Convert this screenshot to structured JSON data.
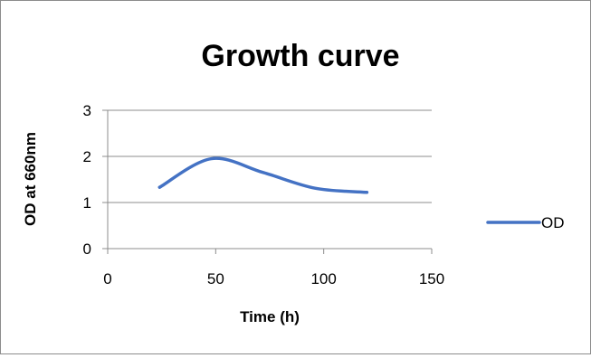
{
  "chart_data": {
    "type": "line",
    "title": "Growth curve",
    "xlabel": "Time (h)",
    "ylabel": "OD at 660nm",
    "xlim": [
      0,
      150
    ],
    "ylim": [
      0,
      3
    ],
    "x_ticks": [
      "0",
      "50",
      "100",
      "150"
    ],
    "y_ticks": [
      "0",
      "1",
      "2",
      "3"
    ],
    "grid": "horizontal",
    "legend": "right",
    "series": [
      {
        "name": "OD",
        "color": "#4472c4",
        "smooth": true,
        "x": [
          24,
          48,
          72,
          96,
          120
        ],
        "y": [
          1.33,
          1.95,
          1.65,
          1.31,
          1.22
        ]
      }
    ]
  }
}
